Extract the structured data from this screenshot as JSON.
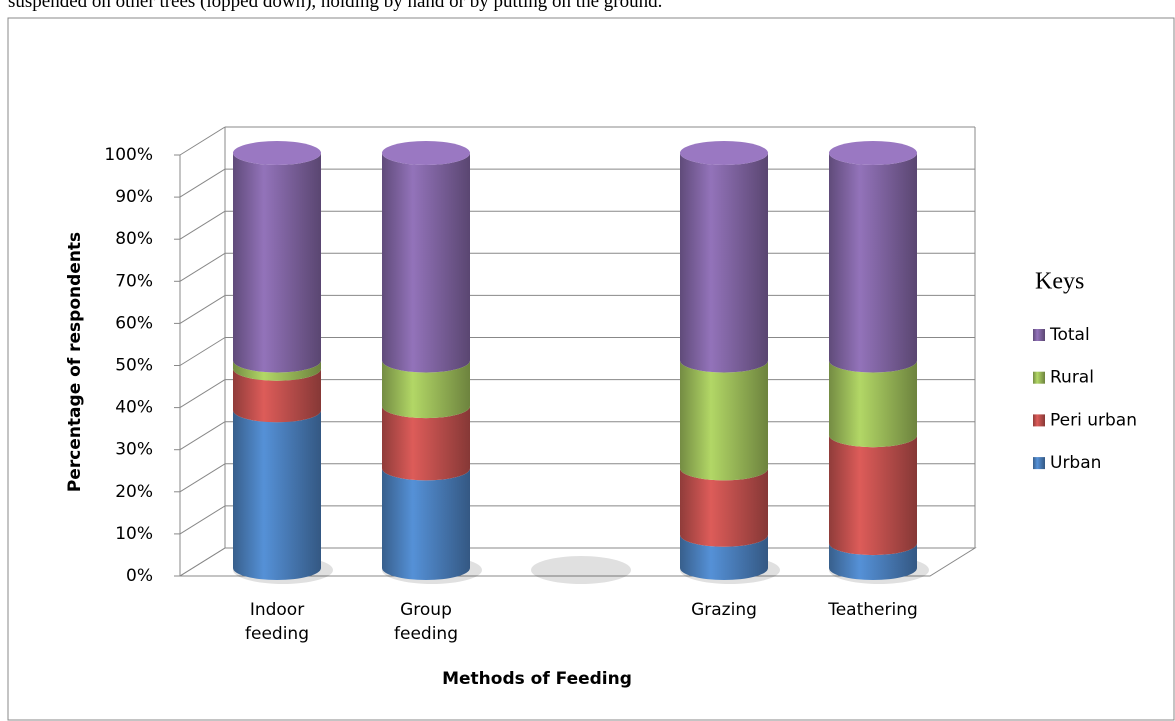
{
  "page_text": "suspended on other trees (lopped down), holding by hand or by putting on the ground.",
  "chart_data": {
    "type": "stacked_cylinder",
    "y_axis_label": "Percentage of respondents",
    "x_axis_label": "Methods of Feeding",
    "legend_title": "Keys",
    "categories": [
      "Indoor feeding",
      "Group feeding",
      null,
      "Grazing",
      "Teathering"
    ],
    "series": [
      {
        "name": "Urban",
        "color": "#4a7ebb",
        "values": [
          38,
          24,
          null,
          8,
          6
        ]
      },
      {
        "name": "Peri urban",
        "color": "#c0504d",
        "values": [
          10,
          15,
          null,
          16,
          26
        ]
      },
      {
        "name": "Rural",
        "color": "#9bbb59",
        "values": [
          2,
          11,
          null,
          26,
          18
        ]
      },
      {
        "name": "Total",
        "color": "#8064a2",
        "values": [
          50,
          50,
          null,
          50,
          50
        ]
      }
    ],
    "ylim": [
      0,
      100
    ],
    "yticks": [
      {
        "value": 0,
        "label": "0%"
      },
      {
        "value": 10,
        "label": "10%"
      },
      {
        "value": 20,
        "label": "20%"
      },
      {
        "value": 30,
        "label": "30%"
      },
      {
        "value": 40,
        "label": "40%"
      },
      {
        "value": 50,
        "label": "50%"
      },
      {
        "value": 60,
        "label": "60%"
      },
      {
        "value": 70,
        "label": "70%"
      },
      {
        "value": 80,
        "label": "80%"
      },
      {
        "value": 90,
        "label": "90%"
      },
      {
        "value": 100,
        "label": "100%"
      }
    ],
    "grid": true,
    "legend_position": "right"
  }
}
